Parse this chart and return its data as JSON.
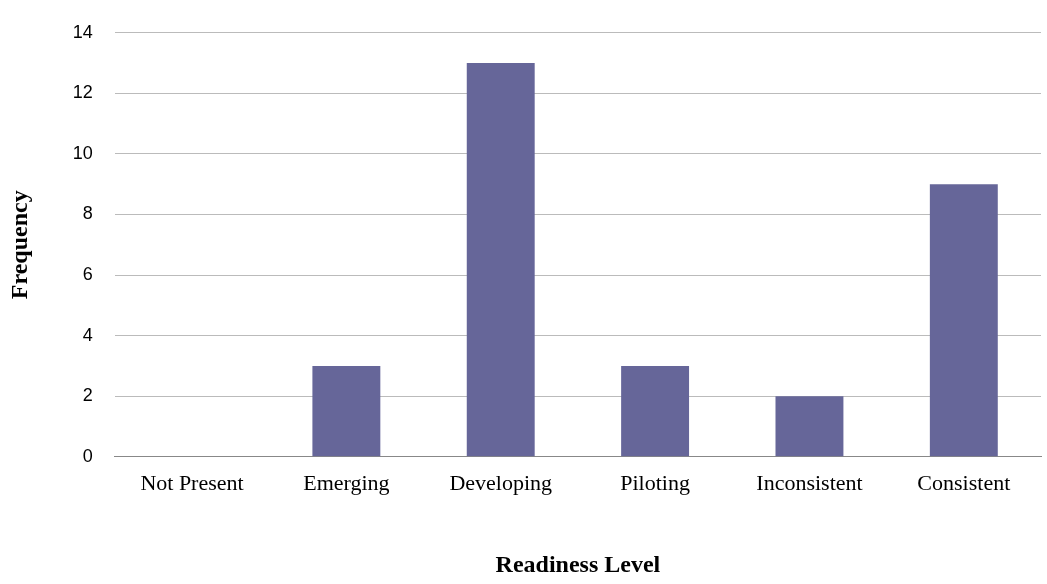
{
  "chart_data": {
    "type": "bar",
    "xlabel": "Readiness Level",
    "ylabel": "Frequency",
    "categories": [
      "Not Present",
      "Emerging",
      "Developing",
      "Piloting",
      "Inconsistent",
      "Consistent"
    ],
    "values": [
      0,
      3,
      13,
      3,
      2,
      9
    ],
    "color": "#666699",
    "ylim": [
      0,
      14
    ],
    "yticks": [
      0,
      2,
      4,
      6,
      8,
      10,
      12,
      14
    ],
    "grid": "y",
    "legend": false
  }
}
